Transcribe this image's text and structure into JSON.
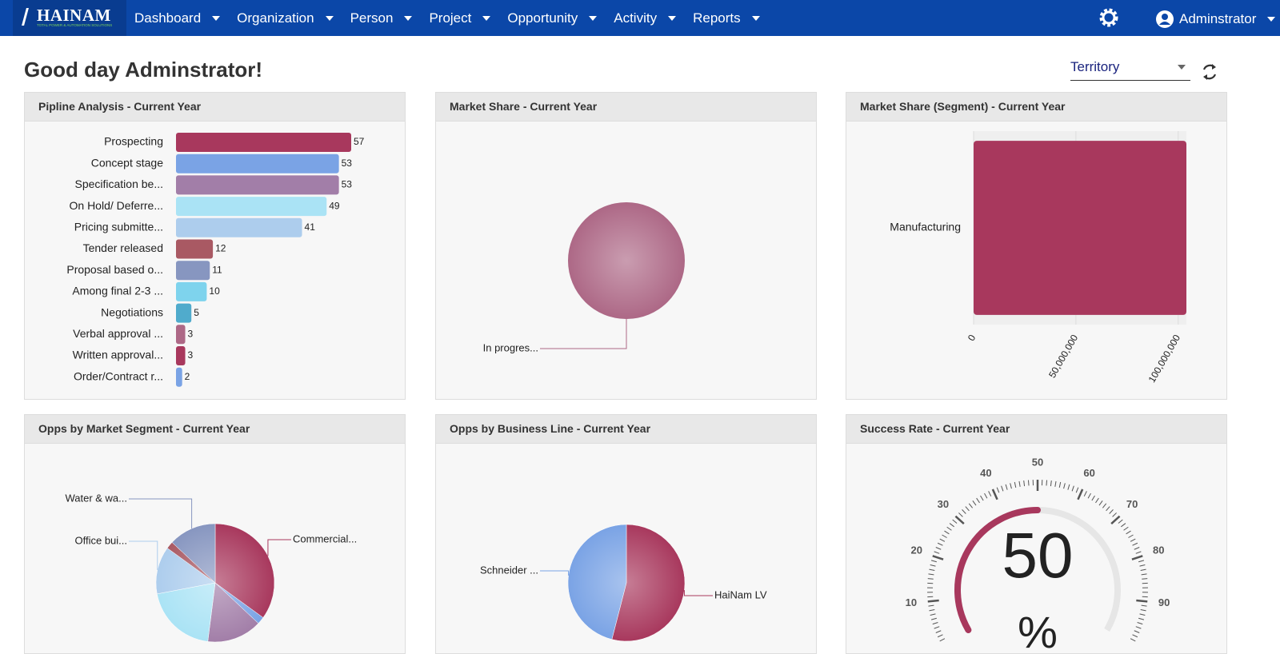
{
  "nav": {
    "logo": "HAINAM",
    "tagline": "TOTAL POWER & AUTOMATION SOLUTIONS",
    "menu": [
      "Dashboard",
      "Organization",
      "Person",
      "Project",
      "Opportunity",
      "Activity",
      "Reports"
    ],
    "user": "Adminstrator"
  },
  "greeting": "Good day Adminstrator!",
  "filter": {
    "label": "Territory"
  },
  "panels": [
    {
      "title": "Pipline Analysis - Current Year",
      "chart_data": {
        "type": "bar",
        "categories": [
          "Prospecting",
          "Concept stage",
          "Specification be...",
          "On Hold/ Deferre...",
          "Pricing submitte...",
          "Tender released",
          "Proposal based o...",
          "Among final 2-3 ...",
          "Negotiations",
          "Verbal approval ...",
          "Written approval...",
          "Order/Contract r..."
        ],
        "values": [
          57,
          53,
          53,
          49,
          41,
          12,
          11,
          10,
          5,
          3,
          3,
          2
        ],
        "colors": [
          "#a8385d",
          "#7aa3e5",
          "#a27ea8",
          "#aae3f5",
          "#adcded",
          "#a95963",
          "#8796c0",
          "#7ed3ed",
          "#50abcc",
          "#ad6886",
          "#a8385d",
          "#7aa3e5"
        ]
      }
    },
    {
      "title": "Market Share - Current Year",
      "chart_data": {
        "type": "pie",
        "categories": [
          "In progres..."
        ],
        "values": [
          100
        ],
        "colors": [
          "#ad6886"
        ]
      }
    },
    {
      "title": "Market Share (Segment) - Current Year",
      "chart_data": {
        "type": "bar",
        "categories": [
          "Manufacturing"
        ],
        "values": [
          104000000
        ],
        "colors": [
          "#a8385d"
        ],
        "xlim": [
          0,
          104000000
        ],
        "xticks": [
          0,
          {
            "value": 50000000,
            "label": "50,000,000"
          },
          {
            "value": 100000000,
            "label": "100,000,000"
          }
        ],
        "grid": true
      }
    },
    {
      "title": "Opps by Market Segment - Current Year",
      "chart_data": {
        "type": "pie",
        "categories": [
          "Commercial...",
          null,
          null,
          null,
          "Office bui...",
          null,
          "Water & wa..."
        ],
        "values": [
          35,
          2,
          15,
          20,
          13,
          2,
          13
        ],
        "colors": [
          "#a8385d",
          "#7aa3e5",
          "#a27ea8",
          "#aae3f5",
          "#adcded",
          "#a95963",
          "#8796c0"
        ]
      }
    },
    {
      "title": "Opps by Business Line - Current Year",
      "chart_data": {
        "type": "pie",
        "categories": [
          "HaiNam LV",
          "Schneider ..."
        ],
        "values": [
          54,
          46
        ],
        "colors": [
          "#a8385d",
          "#7aa3e5"
        ]
      }
    },
    {
      "title": "Success Rate - Current Year",
      "chart_data": {
        "type": "gauge",
        "value": 50,
        "units": "%",
        "ylim": [
          0,
          100
        ],
        "yticks": [
          10,
          20,
          30,
          40,
          50,
          60,
          70,
          80,
          90
        ],
        "color": "#a8385d"
      }
    }
  ]
}
